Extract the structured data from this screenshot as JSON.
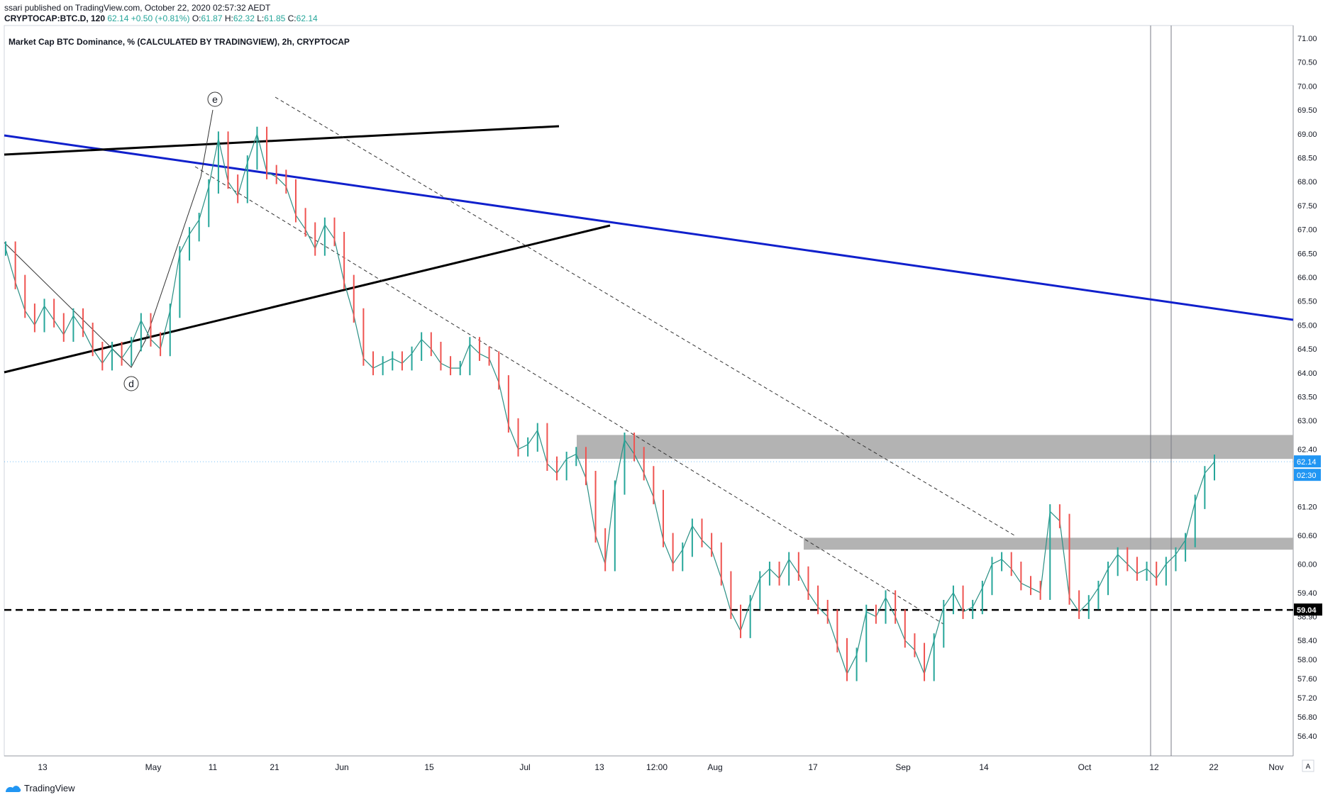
{
  "header": {
    "author": "ssari",
    "published": "published on TradingView.com, October 22, 2020 02:57:32 AEDT",
    "symbol": "CRYPTOCAP:BTC.D, 120",
    "last": "62.14",
    "change": "+0.50 (+0.81%)",
    "o_label": "O:",
    "o_value": "61.87",
    "h_label": "H:",
    "h_value": "62.32",
    "l_label": "L:",
    "l_value": "61.85",
    "c_label": "C:",
    "c_value": "62.14"
  },
  "footer": {
    "brand": "TradingView"
  },
  "chart_data": {
    "type": "line",
    "title": "Market Cap BTC Dominance, % (CALCULATED BY TRADINGVIEW), 2h, CRYPTOCAP",
    "price_axis": [
      "71.00",
      "70.50",
      "70.00",
      "69.50",
      "69.00",
      "68.50",
      "68.00",
      "67.50",
      "67.00",
      "66.50",
      "66.00",
      "65.50",
      "65.00",
      "64.50",
      "64.00",
      "63.50",
      "63.00",
      "62.40",
      "61.80",
      "61.20",
      "60.60",
      "60.00",
      "59.40",
      "58.90",
      "58.40",
      "58.00",
      "57.60",
      "57.20",
      "56.80",
      "56.40"
    ],
    "price_axis_values": [
      71.0,
      70.5,
      70.0,
      69.5,
      69.0,
      68.5,
      68.0,
      67.5,
      67.0,
      66.5,
      66.0,
      65.5,
      65.0,
      64.5,
      64.0,
      63.5,
      63.0,
      62.4,
      61.8,
      61.2,
      60.6,
      60.0,
      59.4,
      58.9,
      58.4,
      58.0,
      57.6,
      57.2,
      56.8,
      56.4
    ],
    "time_axis": [
      "13",
      "May",
      "11",
      "21",
      "Jun",
      "15",
      "Jul",
      "13",
      "12:00",
      "Aug",
      "17",
      "Sep",
      "14",
      "Oct",
      "12",
      "22",
      "Nov"
    ],
    "last_price_label": "62.14",
    "countdown_label": "02:30",
    "support_label": "59.04",
    "support_value": 59.04,
    "resistance_zones": [
      [
        62.2,
        62.7
      ],
      [
        60.3,
        60.55
      ]
    ],
    "wave_labels": [
      "e",
      "d"
    ],
    "colors": {
      "up": "#26a69a",
      "down": "#ef5350",
      "trend_blue": "#1020cc",
      "trend_black": "#000000",
      "zone": "#b3b3b3",
      "price_tag": "#2196f3",
      "support_tag": "#000000"
    },
    "series": [
      {
        "values": [
          66.6,
          65.9,
          65.3,
          65.0,
          65.4,
          65.1,
          64.8,
          65.2,
          64.9,
          64.5,
          64.2,
          64.5,
          64.3,
          64.6,
          65.1,
          64.7,
          64.5,
          65.3,
          66.5,
          66.9,
          67.2,
          67.9,
          68.9,
          68.0,
          67.7,
          68.4,
          69.0,
          68.2,
          68.1,
          67.9,
          67.3,
          67.0,
          66.6,
          67.1,
          66.8,
          65.9,
          65.2,
          64.3,
          64.1,
          64.2,
          64.3,
          64.2,
          64.4,
          64.7,
          64.5,
          64.2,
          64.1,
          64.1,
          64.6,
          64.4,
          64.3,
          63.8,
          62.9,
          62.4,
          62.5,
          62.8,
          62.1,
          61.9,
          62.2,
          62.3,
          61.8,
          60.6,
          60.0,
          61.6,
          62.6,
          62.3,
          61.9,
          61.4,
          60.5,
          60.0,
          60.3,
          60.8,
          60.5,
          60.3,
          59.7,
          59.0,
          58.6,
          59.2,
          59.7,
          59.9,
          59.7,
          60.1,
          59.8,
          59.4,
          59.1,
          58.9,
          58.3,
          57.7,
          58.1,
          59.0,
          58.9,
          59.3,
          58.9,
          58.4,
          58.2,
          57.7,
          58.4,
          59.1,
          59.4,
          59.0,
          59.1,
          59.5,
          60.0,
          60.1,
          59.9,
          59.6,
          59.5,
          59.4,
          61.1,
          60.9,
          59.3,
          59.0,
          59.2,
          59.5,
          59.9,
          60.2,
          60.0,
          59.8,
          59.9,
          59.7,
          60.0,
          60.2,
          60.5,
          61.3,
          61.9,
          62.14
        ]
      }
    ]
  }
}
